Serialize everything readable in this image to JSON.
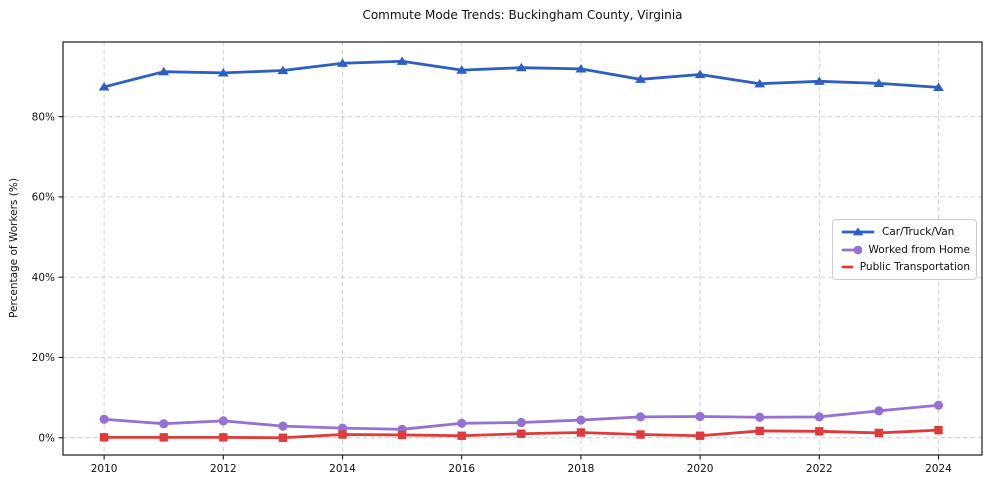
{
  "chart_data": {
    "type": "line",
    "title": "Commute Mode Trends: Buckingham County, Virginia",
    "xlabel": "",
    "ylabel": "Percentage of Workers (%)",
    "x": [
      2010,
      2011,
      2012,
      2013,
      2014,
      2015,
      2016,
      2017,
      2018,
      2019,
      2020,
      2021,
      2022,
      2023,
      2024
    ],
    "series": [
      {
        "name": "Car/Truck/Van",
        "color": "#2d5ec4",
        "marker": "triangle",
        "values": [
          87.4,
          91.2,
          90.9,
          91.5,
          93.3,
          93.8,
          91.6,
          92.2,
          91.9,
          89.3,
          90.5,
          88.2,
          88.8,
          88.3,
          87.3
        ]
      },
      {
        "name": "Worked from Home",
        "color": "#9571d6",
        "marker": "circle",
        "values": [
          4.6,
          3.5,
          4.2,
          2.9,
          2.4,
          2.1,
          3.6,
          3.8,
          4.4,
          5.2,
          5.3,
          5.1,
          5.2,
          6.7,
          8.1
        ]
      },
      {
        "name": "Public Transportation",
        "color": "#df3b3b",
        "marker": "square",
        "values": [
          0.1,
          0.1,
          0.1,
          0.0,
          0.8,
          0.7,
          0.5,
          1.0,
          1.3,
          0.8,
          0.5,
          1.7,
          1.6,
          1.2,
          1.9
        ]
      }
    ],
    "xticks": {
      "values": [
        2010,
        2012,
        2014,
        2016,
        2018,
        2020,
        2022,
        2024
      ],
      "labels": [
        "2010",
        "2012",
        "2014",
        "2016",
        "2018",
        "2020",
        "2022",
        "2024"
      ]
    },
    "yticks": {
      "values": [
        0,
        20,
        40,
        60,
        80
      ],
      "labels": [
        "0%",
        "20%",
        "40%",
        "60%",
        "80%"
      ]
    },
    "xlim": [
      2009.31,
      2024.73
    ],
    "ylim": [
      -4.3,
      98.6
    ],
    "grid": true,
    "grid_color": "#cccccc",
    "spine_color": "#1a1a1a",
    "legend_position": "right-center"
  }
}
